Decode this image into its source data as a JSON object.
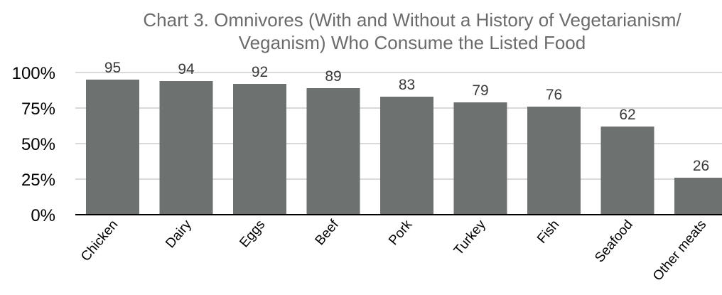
{
  "chart_data": {
    "type": "bar",
    "title_lines": [
      "Chart 3. Omnivores (With and Without a History of Vegetarianism/",
      "Veganism) Who Consume the Listed Food"
    ],
    "categories": [
      "Chicken",
      "Dairy",
      "Eggs",
      "Beef",
      "Pork",
      "Turkey",
      "Fish",
      "Seafood",
      "Other meats"
    ],
    "values": [
      95,
      94,
      92,
      89,
      83,
      79,
      76,
      62,
      26
    ],
    "data_labels": [
      "95",
      "94",
      "92",
      "89",
      "83",
      "79",
      "76",
      "62",
      "26"
    ],
    "xlabel": "",
    "ylabel": "",
    "ylim": [
      0,
      100
    ],
    "yticks": [
      0,
      25,
      50,
      75,
      100
    ],
    "ytick_labels": [
      "0%",
      "25%",
      "50%",
      "75%",
      "100%"
    ],
    "grid": true,
    "legend": "none",
    "colors": {
      "bar": "#6d716f",
      "grid": "#b3b3b3",
      "axis": "#000000",
      "title": "#6b6b6b",
      "text": "#000000",
      "data_label": "#3a3a3a"
    }
  }
}
